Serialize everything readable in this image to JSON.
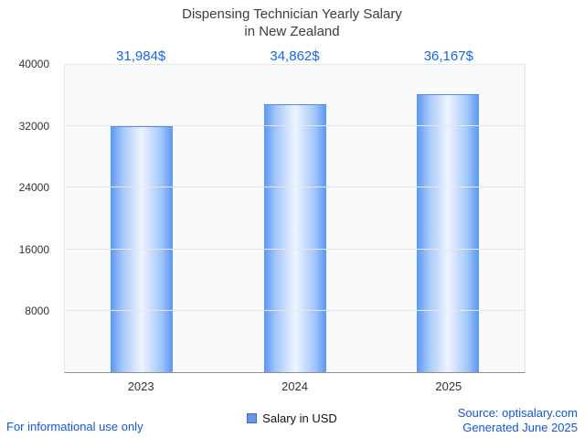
{
  "title": {
    "line1": "Dispensing Technician Yearly Salary",
    "line2": "in New Zealand"
  },
  "chart_data": {
    "type": "bar",
    "title": "Dispensing Technician Yearly Salary in New Zealand",
    "categories": [
      "2023",
      "2024",
      "2025"
    ],
    "values": [
      31984,
      34862,
      36167
    ],
    "value_labels": [
      "31,984$",
      "34,862$",
      "36,167$"
    ],
    "series_name": "Salary in USD",
    "xlabel": "",
    "ylabel": "",
    "ylim": [
      0,
      40000
    ],
    "yticks": [
      8000,
      16000,
      24000,
      32000,
      40000
    ],
    "grid": true,
    "legend_position": "bottom-center",
    "bar_edge_color": "#5a96f2",
    "bar_center_color": "#eef5ff"
  },
  "legend": {
    "label": "Salary in USD"
  },
  "footer": {
    "left": "For informational use only",
    "source": "Source: optisalary.com",
    "generated": "Generated June 2025"
  },
  "colors": {
    "value_label_blue": "#1a67d8",
    "footer_blue": "#1558d0",
    "axis_text": "#333333",
    "title_text": "#3d3d3d"
  }
}
